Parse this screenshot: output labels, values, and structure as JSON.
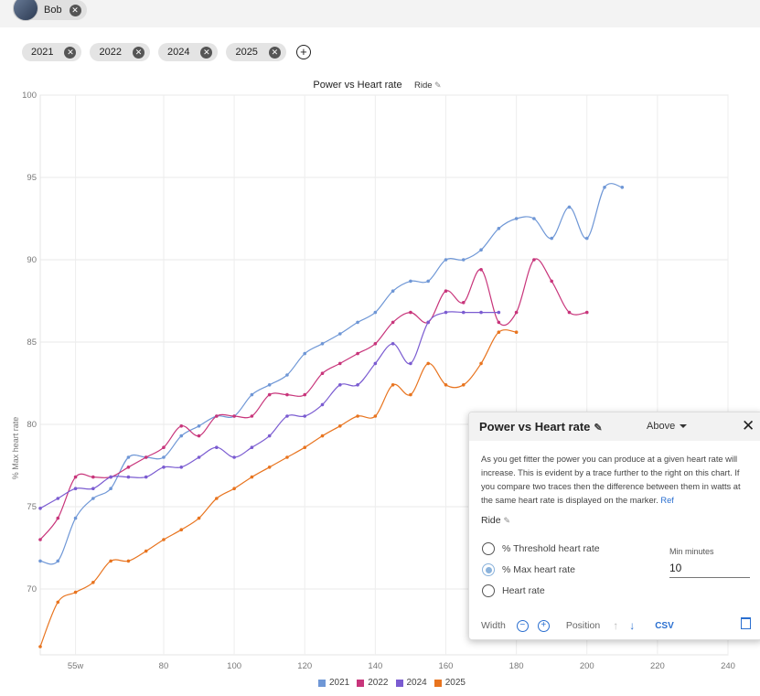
{
  "user": {
    "name": "Bob"
  },
  "year_chips": [
    "2021",
    "2022",
    "2024",
    "2025"
  ],
  "chart_data": {
    "type": "line",
    "title": "Power vs Heart rate",
    "sport_label": "Ride",
    "xlabel": "",
    "ylabel": "% Max heart rate",
    "xlim": [
      45,
      240
    ],
    "ylim": [
      66,
      100
    ],
    "x_ticks": [
      "55w",
      "80",
      "100",
      "120",
      "140",
      "160",
      "180",
      "200",
      "220",
      "240"
    ],
    "x_tick_values": [
      55,
      80,
      100,
      120,
      140,
      160,
      180,
      200,
      220,
      240
    ],
    "y_ticks": [
      "100",
      "95",
      "90",
      "85",
      "80",
      "75",
      "70"
    ],
    "y_tick_values": [
      100,
      95,
      90,
      85,
      80,
      75,
      70
    ],
    "grid": true,
    "legend_position": "bottom",
    "series": [
      {
        "name": "2021",
        "color": "#6f97d6",
        "x": [
          45,
          50,
          55,
          60,
          65,
          70,
          75,
          80,
          85,
          90,
          95,
          100,
          105,
          110,
          115,
          120,
          125,
          130,
          135,
          140,
          145,
          150,
          155,
          160,
          165,
          170,
          175,
          180,
          185,
          190,
          195,
          200,
          205,
          210
        ],
        "y": [
          71.7,
          71.7,
          74.3,
          75.5,
          76.1,
          78,
          78,
          78,
          79.3,
          79.9,
          80.5,
          80.5,
          81.8,
          82.4,
          83,
          84.3,
          84.9,
          85.5,
          86.2,
          86.8,
          88.1,
          88.7,
          88.7,
          90,
          90,
          90.6,
          91.9,
          92.5,
          92.5,
          91.3,
          93.2,
          91.3,
          94.4,
          94.4
        ]
      },
      {
        "name": "2022",
        "color": "#c8357b",
        "x": [
          45,
          50,
          55,
          60,
          65,
          70,
          75,
          80,
          85,
          90,
          95,
          100,
          105,
          110,
          115,
          120,
          125,
          130,
          135,
          140,
          145,
          150,
          155,
          160,
          165,
          170,
          175,
          180,
          185,
          190,
          195,
          200
        ],
        "y": [
          73,
          74.3,
          76.8,
          76.8,
          76.8,
          77.4,
          78,
          78.6,
          79.9,
          79.3,
          80.5,
          80.5,
          80.5,
          81.8,
          81.8,
          81.8,
          83.1,
          83.7,
          84.3,
          84.9,
          86.2,
          86.8,
          86.2,
          88.1,
          87.4,
          89.4,
          86.2,
          86.8,
          90,
          88.7,
          86.8,
          86.8
        ]
      },
      {
        "name": "2024",
        "color": "#7b5cd1",
        "x": [
          45,
          50,
          55,
          60,
          65,
          70,
          75,
          80,
          85,
          90,
          95,
          100,
          105,
          110,
          115,
          120,
          125,
          130,
          135,
          140,
          145,
          150,
          155,
          160,
          165,
          170,
          175
        ],
        "y": [
          74.9,
          75.5,
          76.1,
          76.1,
          76.8,
          76.8,
          76.8,
          77.4,
          77.4,
          78,
          78.6,
          78,
          78.6,
          79.3,
          80.5,
          80.5,
          81.2,
          82.4,
          82.4,
          83.7,
          84.9,
          83.7,
          86.2,
          86.8,
          86.8,
          86.8,
          86.8
        ]
      },
      {
        "name": "2025",
        "color": "#e8741f",
        "x": [
          45,
          50,
          55,
          60,
          65,
          70,
          75,
          80,
          85,
          90,
          95,
          100,
          105,
          110,
          115,
          120,
          125,
          130,
          135,
          140,
          145,
          150,
          155,
          160,
          165,
          170,
          175,
          180
        ],
        "y": [
          66.5,
          69.2,
          69.8,
          70.4,
          71.7,
          71.7,
          72.3,
          73,
          73.6,
          74.3,
          75.5,
          76.1,
          76.8,
          77.4,
          78,
          78.6,
          79.3,
          79.9,
          80.5,
          80.5,
          82.4,
          81.8,
          83.7,
          82.4,
          82.4,
          83.7,
          85.6,
          85.6
        ]
      }
    ]
  },
  "panel": {
    "title": "Power vs Heart rate",
    "position_select": "Above",
    "description": "As you get fitter the power you can produce at a given heart rate will increase. This is evident by a trace further to the right on this chart. If you compare two traces then the difference between them in watts at the same heart rate is displayed on the marker.",
    "ref_link": "Ref",
    "sport": "Ride",
    "radio_options": [
      "% Threshold heart rate",
      "% Max heart rate",
      "Heart rate"
    ],
    "selected_option": "% Max heart rate",
    "min_minutes_label": "Min minutes",
    "min_minutes_value": "10",
    "width_label": "Width",
    "position_label": "Position",
    "csv_label": "CSV"
  }
}
